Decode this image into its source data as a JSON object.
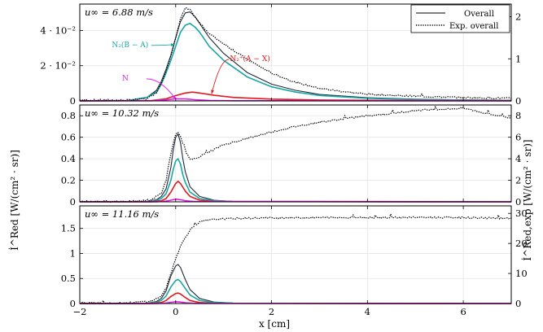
{
  "chart_data": [
    {
      "type": "line",
      "panel_label": "u∞ = 6.88 m/s",
      "xlim": [
        -2,
        7
      ],
      "ylim": [
        0,
        0.055
      ],
      "ylim_right": [
        0,
        2.3
      ],
      "yticks": [
        0,
        0.02,
        0.04
      ],
      "ytick_labels": [
        "0",
        "2 · 10⁻²",
        "4 · 10⁻²"
      ],
      "yticks_right": [
        0,
        1,
        2
      ],
      "ytick_labels_right": [
        "0",
        "1",
        "2"
      ],
      "grid": true,
      "legend": {
        "placement": "top-right",
        "entries": [
          {
            "label": "Overall",
            "style": "solid",
            "color": "#000000"
          },
          {
            "label": "Exp. overall",
            "style": "dotted",
            "color": "#000000"
          }
        ]
      },
      "annotations": [
        {
          "text": "N₂(B − A)",
          "color": "#1aa6a6",
          "x": -0.95,
          "y": 0.032,
          "arrow_to": [
            -0.02,
            0.032
          ]
        },
        {
          "text": "N₂⁺(A − X)",
          "color": "#e31a1c",
          "x": 1.55,
          "y": 0.024,
          "arrow_to": [
            0.75,
            0.004
          ]
        },
        {
          "text": "N",
          "color": "#e81ce8",
          "x": -1.05,
          "y": 0.013,
          "arrow_to": [
            0.0,
            0.001
          ]
        }
      ],
      "series": [
        {
          "name": "Overall",
          "color": "#1f2a36",
          "role": "overall",
          "x": [
            -2,
            -1,
            -0.6,
            -0.4,
            -0.3,
            -0.2,
            -0.1,
            0,
            0.1,
            0.2,
            0.3,
            0.4,
            0.5,
            0.7,
            1,
            1.5,
            2,
            2.5,
            3,
            4,
            5,
            6,
            7
          ],
          "y": [
            0,
            0.0002,
            0.002,
            0.006,
            0.011,
            0.018,
            0.026,
            0.036,
            0.045,
            0.05,
            0.0505,
            0.048,
            0.044,
            0.036,
            0.027,
            0.016,
            0.0095,
            0.006,
            0.0037,
            0.0018,
            0.001,
            0.0006,
            0.0004
          ]
        },
        {
          "name": "N₂(B − A)",
          "color": "#1aa6a6",
          "x": [
            -2,
            -1,
            -0.6,
            -0.4,
            -0.3,
            -0.2,
            -0.1,
            0,
            0.1,
            0.2,
            0.3,
            0.4,
            0.5,
            0.7,
            1,
            1.5,
            2,
            2.5,
            3,
            4,
            5,
            6,
            7
          ],
          "y": [
            0,
            0.0002,
            0.002,
            0.005,
            0.0095,
            0.016,
            0.023,
            0.031,
            0.039,
            0.043,
            0.044,
            0.042,
            0.039,
            0.031,
            0.023,
            0.0135,
            0.008,
            0.005,
            0.0031,
            0.0015,
            0.0008,
            0.0005,
            0.0003
          ]
        },
        {
          "name": "N₂⁺(A − X)",
          "color": "#e31a1c",
          "x": [
            -2,
            -0.5,
            -0.2,
            0,
            0.2,
            0.35,
            0.5,
            0.8,
            1.2,
            2,
            3,
            5,
            7
          ],
          "y": [
            0,
            0.0002,
            0.0012,
            0.003,
            0.0045,
            0.005,
            0.0045,
            0.0032,
            0.002,
            0.001,
            0.0005,
            0.0002,
            0.0001
          ]
        },
        {
          "name": "N",
          "color": "#e81ce8",
          "x": [
            -2,
            -0.5,
            -0.2,
            0,
            0.2,
            0.4,
            0.7,
            1.2,
            7
          ],
          "y": [
            0,
            0.0001,
            0.0006,
            0.0012,
            0.0011,
            0.0007,
            0.0003,
            0.0001,
            0
          ]
        },
        {
          "name": "Exp. overall",
          "color": "#000000",
          "axis": "right",
          "style": "dotted",
          "x": [
            -2,
            -1,
            -0.6,
            -0.4,
            -0.3,
            -0.2,
            -0.1,
            0,
            0.1,
            0.2,
            0.3,
            0.4,
            0.5,
            0.7,
            1,
            1.5,
            2,
            2.5,
            3,
            3.5,
            4,
            5,
            6,
            7
          ],
          "y": [
            0.02,
            0.02,
            0.05,
            0.2,
            0.42,
            0.72,
            1.05,
            1.5,
            1.95,
            2.2,
            2.16,
            2.0,
            1.85,
            1.6,
            1.36,
            0.98,
            0.66,
            0.44,
            0.3,
            0.22,
            0.16,
            0.11,
            0.08,
            0.06
          ]
        }
      ]
    },
    {
      "type": "line",
      "panel_label": "u∞ = 10.32 m/s",
      "xlim": [
        -2,
        7
      ],
      "ylim": [
        0,
        0.9
      ],
      "ylim_right": [
        0,
        9
      ],
      "yticks": [
        0,
        0.2,
        0.4,
        0.6,
        0.8
      ],
      "ytick_labels": [
        "0",
        "0.2",
        "0.4",
        "0.6",
        "0.8"
      ],
      "yticks_right": [
        0,
        2,
        4,
        6,
        8
      ],
      "ytick_labels_right": [
        "0",
        "2",
        "4",
        "6",
        "8"
      ],
      "grid": true,
      "series": [
        {
          "name": "Overall",
          "color": "#1f2a36",
          "role": "overall",
          "x": [
            -2,
            -0.6,
            -0.4,
            -0.3,
            -0.2,
            -0.1,
            -0.05,
            0,
            0.05,
            0.1,
            0.15,
            0.2,
            0.3,
            0.5,
            0.8,
            1.2,
            7
          ],
          "y": [
            0,
            0.003,
            0.02,
            0.05,
            0.12,
            0.32,
            0.48,
            0.6,
            0.63,
            0.55,
            0.4,
            0.28,
            0.14,
            0.05,
            0.015,
            0.004,
            0
          ]
        },
        {
          "name": "N₂(B − A)",
          "color": "#1aa6a6",
          "x": [
            -2,
            -0.6,
            -0.4,
            -0.3,
            -0.2,
            -0.1,
            -0.05,
            0,
            0.05,
            0.1,
            0.15,
            0.2,
            0.3,
            0.5,
            0.8,
            1.2,
            7
          ],
          "y": [
            0,
            0.002,
            0.013,
            0.03,
            0.075,
            0.2,
            0.3,
            0.38,
            0.4,
            0.35,
            0.25,
            0.18,
            0.09,
            0.03,
            0.01,
            0.003,
            0
          ]
        },
        {
          "name": "N₂⁺(A − X)",
          "color": "#e31a1c",
          "x": [
            -2,
            -0.5,
            -0.3,
            -0.2,
            -0.1,
            0,
            0.05,
            0.1,
            0.2,
            0.3,
            0.5,
            0.8,
            7
          ],
          "y": [
            0,
            0.001,
            0.01,
            0.03,
            0.09,
            0.17,
            0.19,
            0.17,
            0.1,
            0.05,
            0.015,
            0.004,
            0
          ]
        },
        {
          "name": "N",
          "color": "#e81ce8",
          "x": [
            -2,
            -0.4,
            -0.2,
            -0.1,
            0,
            0.1,
            0.2,
            0.4,
            7
          ],
          "y": [
            0,
            0.001,
            0.006,
            0.015,
            0.025,
            0.02,
            0.01,
            0.002,
            0
          ]
        },
        {
          "name": "Exp. overall",
          "color": "#000000",
          "axis": "right",
          "style": "dotted",
          "x": [
            -2,
            -0.8,
            -0.5,
            -0.3,
            -0.2,
            -0.1,
            0,
            0.05,
            0.1,
            0.2,
            0.3,
            0.5,
            1,
            1.5,
            2,
            2.5,
            3,
            3.5,
            4,
            4.5,
            5,
            5.5,
            6,
            6.3,
            6.6,
            7
          ],
          "y": [
            0.05,
            0.05,
            0.2,
            0.8,
            2.0,
            4.5,
            6.3,
            6.4,
            6.0,
            4.8,
            3.9,
            4.2,
            5.3,
            5.9,
            6.5,
            7.0,
            7.4,
            7.7,
            8.0,
            8.2,
            8.5,
            8.6,
            8.7,
            8.4,
            8.1,
            7.8
          ]
        }
      ]
    },
    {
      "type": "line",
      "panel_label": "u∞ = 11.16 m/s",
      "xlim": [
        -2,
        7
      ],
      "ylim": [
        0,
        1.95
      ],
      "ylim_right": [
        0,
        32.5
      ],
      "yticks": [
        0,
        0.5,
        1,
        1.5
      ],
      "ytick_labels": [
        "0",
        "0.5",
        "1",
        "1.5"
      ],
      "yticks_right": [
        0,
        10,
        20,
        30
      ],
      "ytick_labels_right": [
        "0",
        "10",
        "20",
        "30"
      ],
      "grid": true,
      "series": [
        {
          "name": "Overall",
          "color": "#1f2a36",
          "role": "overall",
          "x": [
            -2,
            -0.6,
            -0.4,
            -0.3,
            -0.2,
            -0.1,
            0,
            0.05,
            0.1,
            0.2,
            0.3,
            0.5,
            0.8,
            1.2,
            7
          ],
          "y": [
            0,
            0.005,
            0.04,
            0.1,
            0.25,
            0.55,
            0.75,
            0.78,
            0.72,
            0.48,
            0.28,
            0.1,
            0.03,
            0.01,
            0
          ]
        },
        {
          "name": "N₂(B − A)",
          "color": "#1aa6a6",
          "x": [
            -2,
            -0.6,
            -0.4,
            -0.3,
            -0.2,
            -0.1,
            0,
            0.05,
            0.1,
            0.2,
            0.3,
            0.5,
            0.8,
            1.2,
            7
          ],
          "y": [
            0,
            0.003,
            0.025,
            0.06,
            0.15,
            0.33,
            0.46,
            0.48,
            0.44,
            0.3,
            0.17,
            0.06,
            0.02,
            0.005,
            0
          ]
        },
        {
          "name": "N₂⁺(A − X)",
          "color": "#e31a1c",
          "x": [
            -2,
            -0.5,
            -0.3,
            -0.2,
            -0.1,
            0,
            0.05,
            0.1,
            0.2,
            0.3,
            0.5,
            0.8,
            7
          ],
          "y": [
            0,
            0.002,
            0.02,
            0.06,
            0.14,
            0.2,
            0.21,
            0.19,
            0.12,
            0.06,
            0.02,
            0.005,
            0
          ]
        },
        {
          "name": "N",
          "color": "#e81ce8",
          "x": [
            -2,
            -0.4,
            -0.2,
            -0.1,
            0,
            0.1,
            0.2,
            0.4,
            7
          ],
          "y": [
            0,
            0.001,
            0.01,
            0.025,
            0.035,
            0.03,
            0.015,
            0.003,
            0
          ]
        },
        {
          "name": "Exp. overall",
          "color": "#000000",
          "axis": "right",
          "style": "dotted",
          "x": [
            -2,
            -1,
            -0.5,
            -0.3,
            -0.2,
            -0.1,
            0,
            0.1,
            0.2,
            0.3,
            0.4,
            0.5,
            0.6,
            0.8,
            1,
            1.5,
            2,
            3,
            4,
            5,
            6,
            7
          ],
          "y": [
            0.2,
            0.2,
            0.8,
            2.5,
            5,
            10,
            15,
            19,
            22,
            24.5,
            26,
            27,
            27.5,
            28,
            28.2,
            28.4,
            28.5,
            28.6,
            28.6,
            28.7,
            28.6,
            28.3
          ]
        }
      ]
    }
  ],
  "axes": {
    "xlabel": "x [cm]",
    "xticks": [
      -2,
      0,
      2,
      4,
      6
    ],
    "xtick_labels": [
      "−2",
      "0",
      "2",
      "4",
      "6"
    ],
    "ylabel_left": "İ^Red [W/(cm² · sr)]",
    "ylabel_right": "İ^Red,exp [W/(cm² · sr)]"
  }
}
